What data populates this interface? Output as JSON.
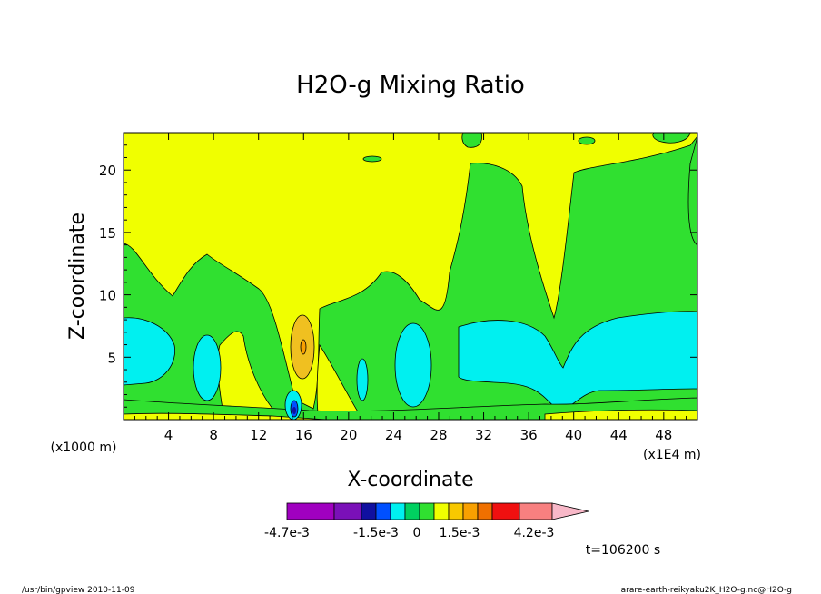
{
  "chart_data": {
    "type": "heatmap",
    "title": "H2O-g Mixing Ratio",
    "xlabel": "X-coordinate",
    "ylabel": "Z-coordinate",
    "x_unit_left": "(x1000 m)",
    "x_unit_right": "(x1E4 m)",
    "xticks": [
      "4",
      "8",
      "12",
      "16",
      "20",
      "24",
      "28",
      "32",
      "36",
      "40",
      "44",
      "48"
    ],
    "yticks": [
      "5",
      "10",
      "15",
      "20"
    ],
    "xlim": [
      0,
      51
    ],
    "ylim": [
      0,
      23
    ],
    "time_label": "t=106200 s",
    "colorbar": {
      "colors": [
        "#a000c0",
        "#7a10b8",
        "#1010a0",
        "#0050ff",
        "#00f0f0",
        "#00d060",
        "#30e030",
        "#f0ff00",
        "#f8c800",
        "#f8a000",
        "#f07000",
        "#f01010",
        "#f88080",
        "#f8b8c8"
      ],
      "labels": [
        "-4.7e-3",
        "-1.5e-3",
        "0",
        "1.5e-3",
        "4.2e-3"
      ]
    },
    "fields": {
      "background": "#f0ff00",
      "green": "#30e030",
      "cyan": "#00f0f0",
      "orange": "#f0c020",
      "blue": "#0050ff",
      "navy": "#1010a0"
    }
  },
  "footer": {
    "left": "/usr/bin/gpview  2010-11-09",
    "right": "arare-earth-reikyaku2K_H2O-g.nc@H2O-g"
  }
}
